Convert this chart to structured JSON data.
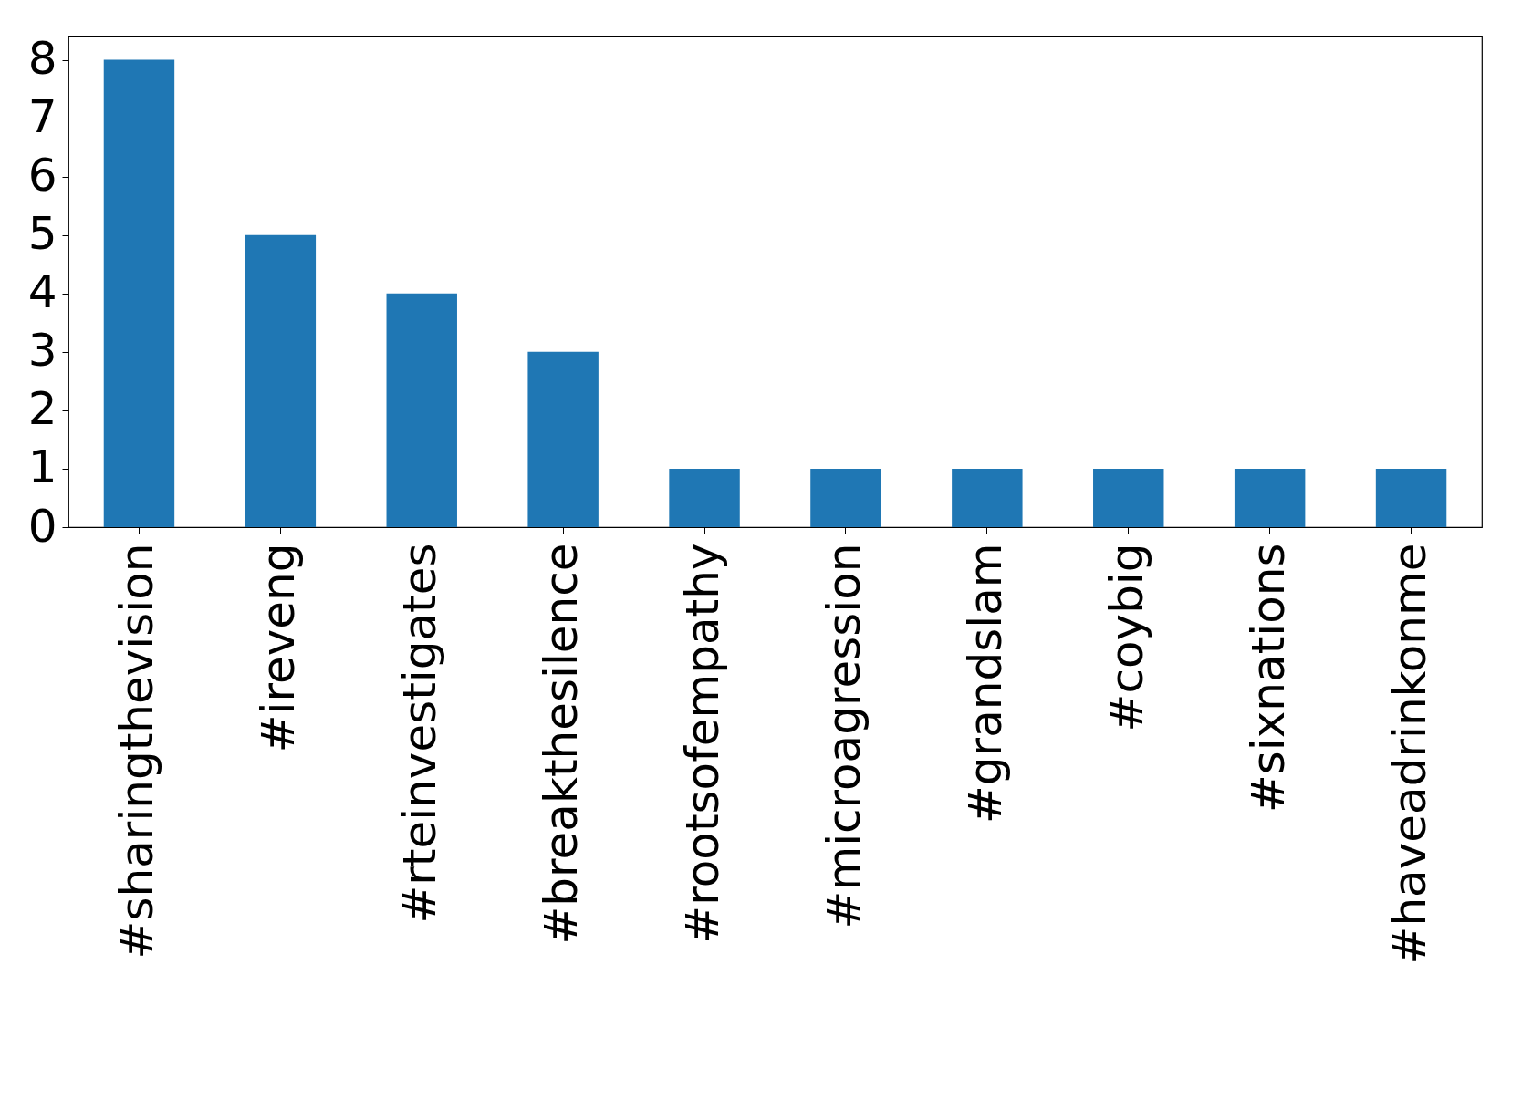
{
  "chart_data": {
    "type": "bar",
    "categories": [
      "#sharingthevision",
      "#ireveng",
      "#rteinvestigates",
      "#breakthesilence",
      "#rootsofempathy",
      "#microagression",
      "#grandslam",
      "#coybig",
      "#sixnations",
      "#haveadrinkonme"
    ],
    "values": [
      8,
      5,
      4,
      3,
      1,
      1,
      1,
      1,
      1,
      1
    ],
    "color": "#1f77b4",
    "ylim": [
      0,
      8.4
    ],
    "yticks": [
      0,
      1,
      2,
      3,
      4,
      5,
      6,
      7,
      8
    ],
    "grid": false
  }
}
